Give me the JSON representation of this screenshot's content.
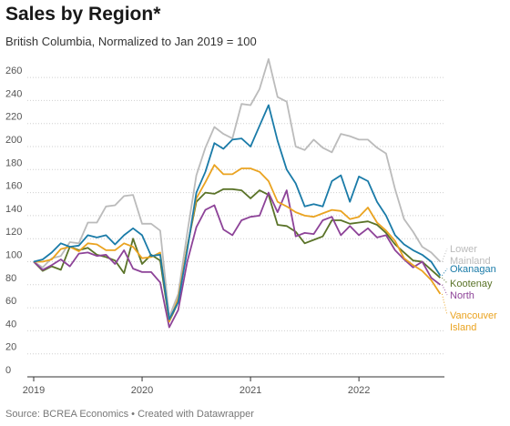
{
  "header": {
    "title": "Sales by Region*",
    "subtitle": "British Columbia, Normalized to Jan 2019 = 100"
  },
  "footer": {
    "source": "Source: BCREA Economics • Created with Datawrapper"
  },
  "chart_data": {
    "type": "line",
    "title": "Sales by Region*",
    "subtitle": "British Columbia, Normalized to Jan 2019 = 100",
    "x_start": "2019-01",
    "x_tick_labels": [
      "2019",
      "2020",
      "2021",
      "2022"
    ],
    "y_ticks": [
      0,
      20,
      40,
      60,
      80,
      100,
      120,
      140,
      160,
      180,
      200,
      220,
      240,
      260
    ],
    "ylim": [
      0,
      270
    ],
    "grid": "horizontal dotted",
    "legend": "direct labels at line ends (right)",
    "series": [
      {
        "name": "Lower Mainland",
        "label_lines": [
          "Lower",
          "Mainland"
        ],
        "color": "#bbbbbb",
        "values": [
          100,
          95,
          103,
          105,
          117,
          116,
          134,
          134,
          148,
          149,
          157,
          158,
          133,
          133,
          127,
          52,
          72,
          125,
          175,
          199,
          217,
          211,
          207,
          237,
          236,
          250,
          276,
          243,
          239,
          200,
          197,
          206,
          199,
          195,
          211,
          209,
          206,
          206,
          199,
          194,
          163,
          137,
          126,
          113,
          108,
          100
        ]
      },
      {
        "name": "Okanagan",
        "label_lines": [
          "Okanagan"
        ],
        "color": "#1a7ba8",
        "values": [
          100,
          102,
          108,
          116,
          113,
          114,
          123,
          121,
          123,
          115,
          123,
          129,
          123,
          105,
          106,
          50,
          65,
          110,
          160,
          178,
          203,
          198,
          206,
          207,
          200,
          218,
          236,
          205,
          180,
          168,
          148,
          150,
          148,
          170,
          175,
          152,
          174,
          170,
          152,
          140,
          123,
          115,
          110,
          106,
          100,
          88
        ]
      },
      {
        "name": "Kootenay",
        "label_lines": [
          "Kootenay"
        ],
        "color": "#5a7328",
        "values": [
          100,
          92,
          96,
          93,
          113,
          110,
          112,
          106,
          104,
          101,
          90,
          120,
          98,
          106,
          101,
          48,
          65,
          113,
          152,
          160,
          159,
          163,
          163,
          162,
          155,
          162,
          158,
          132,
          131,
          126,
          116,
          119,
          122,
          136,
          136,
          133,
          134,
          135,
          132,
          125,
          115,
          108,
          101,
          100,
          93,
          86
        ]
      },
      {
        "name": "North",
        "label_lines": [
          "North"
        ],
        "color": "#8d4398",
        "values": [
          100,
          93,
          97,
          102,
          96,
          107,
          108,
          105,
          106,
          98,
          110,
          94,
          91,
          91,
          82,
          43,
          58,
          100,
          130,
          145,
          149,
          128,
          123,
          136,
          139,
          140,
          160,
          143,
          162,
          122,
          125,
          124,
          136,
          139,
          123,
          131,
          123,
          129,
          121,
          123,
          110,
          102,
          95,
          100,
          86,
          80
        ]
      },
      {
        "name": "Vancouver Island",
        "label_lines": [
          "Vancouver",
          "Island"
        ],
        "color": "#eaa320",
        "values": [
          100,
          100,
          102,
          111,
          113,
          109,
          116,
          115,
          110,
          110,
          116,
          113,
          103,
          104,
          108,
          48,
          68,
          112,
          155,
          169,
          184,
          176,
          176,
          181,
          181,
          178,
          170,
          152,
          148,
          143,
          140,
          139,
          142,
          145,
          144,
          137,
          139,
          147,
          134,
          127,
          118,
          103,
          97,
          92,
          84,
          72
        ]
      }
    ]
  }
}
